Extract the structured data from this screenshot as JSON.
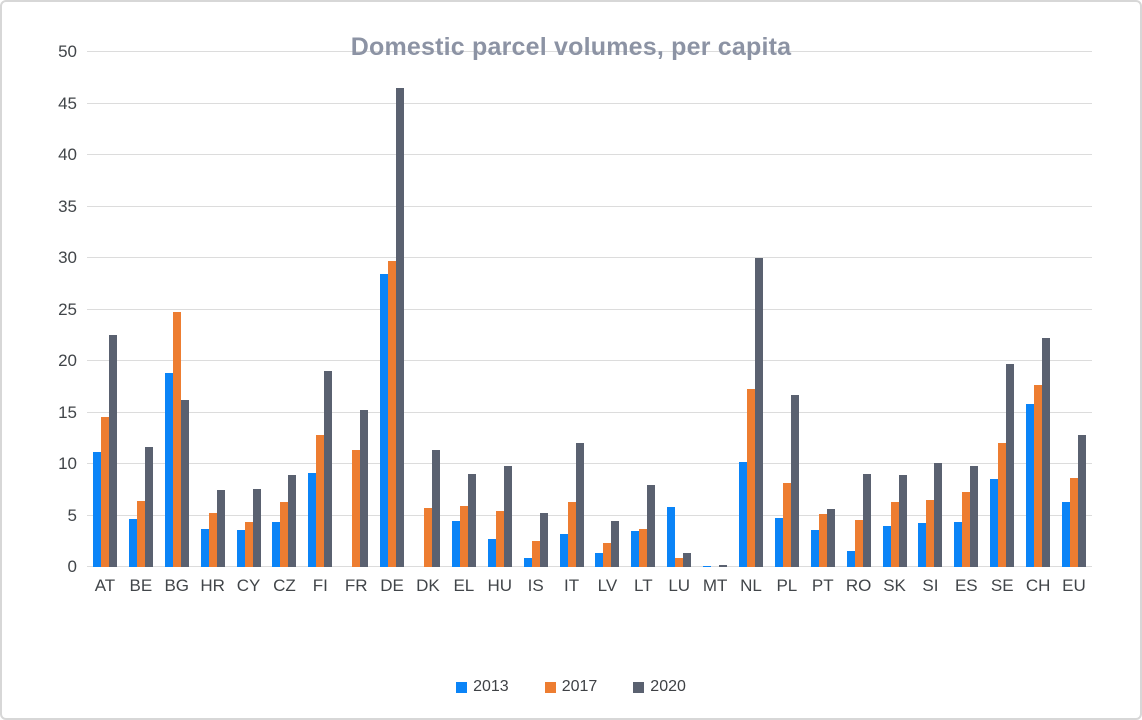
{
  "chart_data": {
    "type": "bar",
    "title": "Domestic parcel volumes, per capita",
    "xlabel": "",
    "ylabel": "",
    "ylim": [
      0,
      50
    ],
    "yticks": [
      0,
      5,
      10,
      15,
      20,
      25,
      30,
      35,
      40,
      45,
      50
    ],
    "grid": true,
    "legend_position": "bottom",
    "categories": [
      "AT",
      "BE",
      "BG",
      "HR",
      "CY",
      "CZ",
      "FI",
      "FR",
      "DE",
      "DK",
      "EL",
      "HU",
      "IS",
      "IT",
      "LV",
      "LT",
      "LU",
      "MT",
      "NL",
      "PL",
      "PT",
      "RO",
      "SK",
      "SI",
      "ES",
      "SE",
      "CH",
      "EU"
    ],
    "series": [
      {
        "name": "2013",
        "color": "#0b84f7",
        "values": [
          11.2,
          4.7,
          18.8,
          3.7,
          3.6,
          4.4,
          9.1,
          null,
          28.4,
          null,
          4.5,
          2.7,
          0.9,
          3.2,
          1.4,
          3.5,
          5.8,
          0.1,
          10.2,
          4.8,
          3.6,
          1.6,
          4.0,
          4.3,
          4.4,
          8.5,
          15.8,
          6.3
        ]
      },
      {
        "name": "2017",
        "color": "#ED7D31",
        "values": [
          14.6,
          6.4,
          24.8,
          5.2,
          4.4,
          6.3,
          12.8,
          11.4,
          29.7,
          5.7,
          5.9,
          5.4,
          2.5,
          6.3,
          2.3,
          3.7,
          0.9,
          null,
          17.3,
          8.2,
          5.1,
          4.6,
          6.3,
          6.5,
          7.3,
          12.0,
          17.7,
          8.6
        ]
      },
      {
        "name": "2020",
        "color": "#5A6170",
        "values": [
          22.5,
          11.7,
          16.2,
          7.5,
          7.6,
          8.9,
          19.0,
          15.2,
          46.5,
          11.4,
          9.0,
          9.8,
          5.2,
          12.0,
          4.5,
          8.0,
          1.4,
          0.2,
          30.0,
          16.7,
          5.6,
          9.0,
          8.9,
          10.1,
          9.8,
          19.7,
          22.2,
          12.8
        ]
      }
    ]
  },
  "style": {
    "title_color": "#8C93A4",
    "axis_label_color": "#414549",
    "gridline_color": "#dcdcdc",
    "background": "#ffffff",
    "border_color": "#d7d7d7"
  }
}
